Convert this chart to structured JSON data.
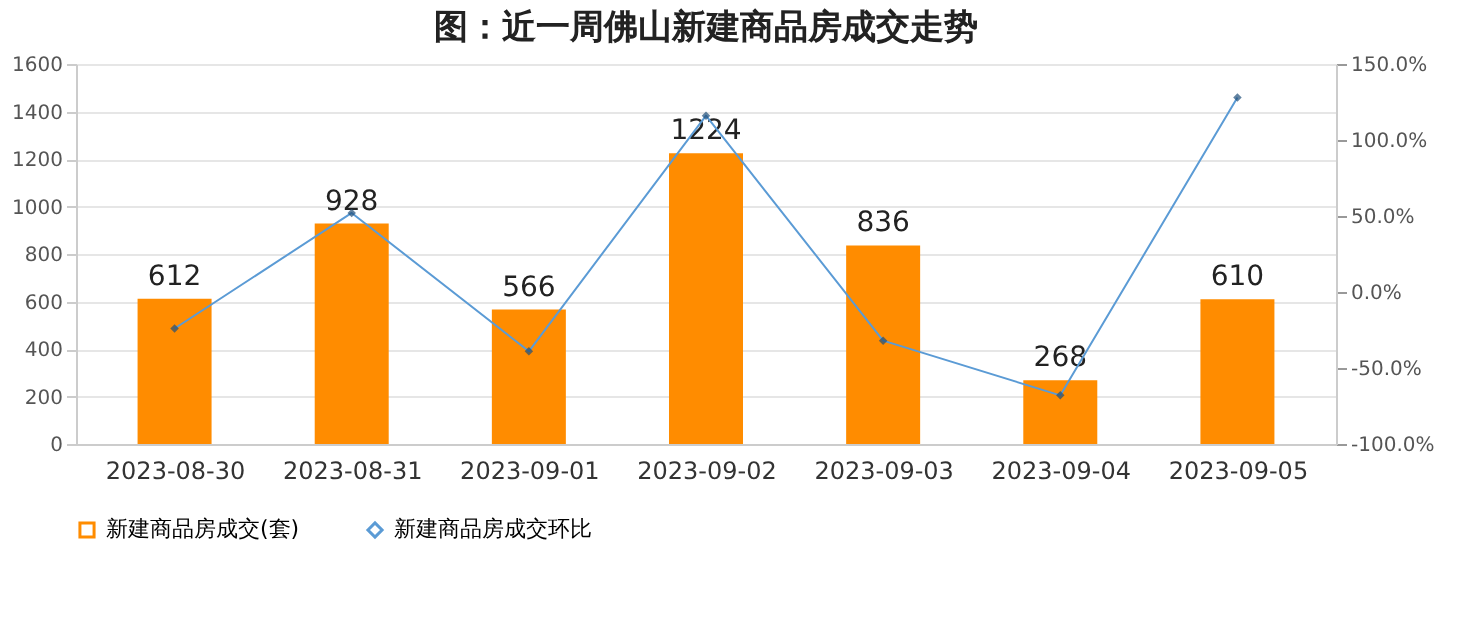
{
  "chart_data": {
    "type": "bar",
    "title": "图：近一周佛山新建商品房成交走势",
    "categories": [
      "2023-08-30",
      "2023-08-31",
      "2023-09-01",
      "2023-09-02",
      "2023-09-03",
      "2023-09-04",
      "2023-09-05"
    ],
    "series": [
      {
        "name": "新建商品房成交(套)",
        "color": "#ff8c00",
        "values": [
          612,
          928,
          566,
          1224,
          836,
          268,
          610
        ],
        "value_labels": [
          "612",
          "928",
          "566",
          "1224",
          "836",
          "268",
          "610"
        ]
      },
      {
        "name": "新建商品房成交环比",
        "type": "line",
        "axis": "y2",
        "color": "#5b9bd5",
        "marker": "diamond",
        "values": [
          -24,
          52,
          -39,
          116,
          -32,
          -68,
          128
        ]
      }
    ],
    "ylim": [
      0,
      1600
    ],
    "yticks": [
      0,
      200,
      400,
      600,
      800,
      1000,
      1200,
      1400,
      1600
    ],
    "y2lim": [
      -100,
      150
    ],
    "y2ticks": [
      {
        "value": -100,
        "label": "-100.0%"
      },
      {
        "value": -50,
        "label": "-50.0%"
      },
      {
        "value": 0,
        "label": "0.0%"
      },
      {
        "value": 50,
        "label": "50.0%"
      },
      {
        "value": 100,
        "label": "100.0%"
      },
      {
        "value": 150,
        "label": "150.0%"
      }
    ],
    "grid": "y",
    "legend": "bottom"
  }
}
